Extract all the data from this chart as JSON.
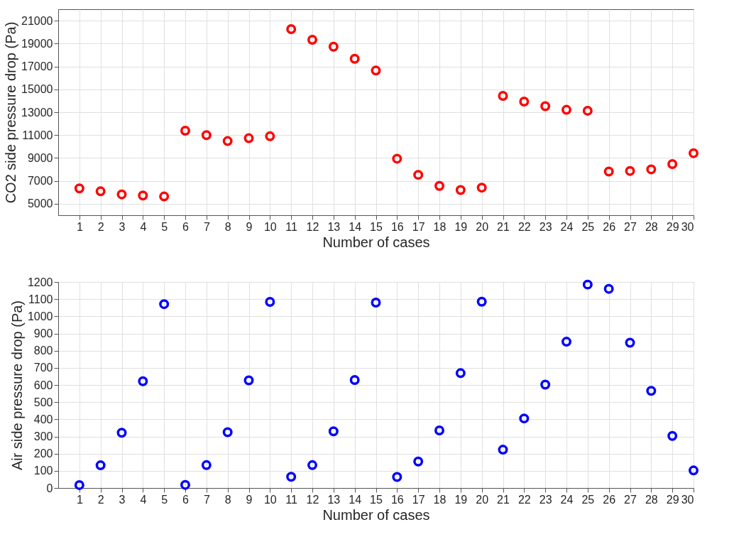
{
  "chart_data": [
    {
      "type": "scatter",
      "xlabel": "Number of cases",
      "ylabel": "CO2 side pressure drop (Pa)",
      "x": [
        1,
        2,
        3,
        4,
        5,
        6,
        7,
        8,
        9,
        10,
        11,
        12,
        13,
        14,
        15,
        16,
        17,
        18,
        19,
        20,
        21,
        22,
        23,
        24,
        25,
        26,
        27,
        28,
        29,
        30
      ],
      "series": [
        {
          "color": "#ff0000",
          "values": [
            6340,
            6090,
            5820,
            5720,
            5640,
            11390,
            11000,
            10480,
            10730,
            10900,
            20260,
            19330,
            18730,
            17670,
            16640,
            8940,
            7530,
            6560,
            6200,
            6410,
            14430,
            13930,
            13530,
            13210,
            13130,
            7820,
            7870,
            8010,
            8470,
            9420
          ]
        }
      ],
      "xlim": [
        0,
        30
      ],
      "xticks": [
        1,
        2,
        3,
        4,
        5,
        6,
        7,
        8,
        9,
        10,
        11,
        12,
        13,
        14,
        15,
        16,
        17,
        18,
        19,
        20,
        21,
        22,
        23,
        24,
        25,
        26,
        27,
        28,
        29,
        30
      ],
      "ylim": [
        4000,
        22000
      ],
      "yticks": [
        5000,
        7000,
        9000,
        11000,
        13000,
        15000,
        17000,
        19000,
        21000
      ],
      "grid": true,
      "marker": "circle"
    },
    {
      "type": "scatter",
      "xlabel": "Number of cases",
      "ylabel": "Air side pressure drop (Pa)",
      "x": [
        1,
        2,
        3,
        4,
        5,
        6,
        7,
        8,
        9,
        10,
        11,
        12,
        13,
        14,
        15,
        16,
        17,
        18,
        19,
        20,
        21,
        22,
        23,
        24,
        25,
        26,
        27,
        28,
        29,
        30
      ],
      "series": [
        {
          "color": "#0000ff",
          "values": [
            17,
            132,
            322,
            622,
            1071,
            18,
            133,
            325,
            627,
            1084,
            65,
            133,
            330,
            629,
            1080,
            64,
            154,
            335,
            669,
            1085,
            223,
            405,
            602,
            852,
            1185,
            1160,
            846,
            566,
            303,
            102
          ]
        }
      ],
      "xlim": [
        0,
        30
      ],
      "xticks": [
        1,
        2,
        3,
        4,
        5,
        6,
        7,
        8,
        9,
        10,
        11,
        12,
        13,
        14,
        15,
        16,
        17,
        18,
        19,
        20,
        21,
        22,
        23,
        24,
        25,
        26,
        27,
        28,
        29,
        30
      ],
      "ylim": [
        0,
        1200
      ],
      "yticks": [
        0,
        100,
        200,
        300,
        400,
        500,
        600,
        700,
        800,
        900,
        1000,
        1100,
        1200
      ],
      "grid": true,
      "marker": "circle"
    }
  ]
}
